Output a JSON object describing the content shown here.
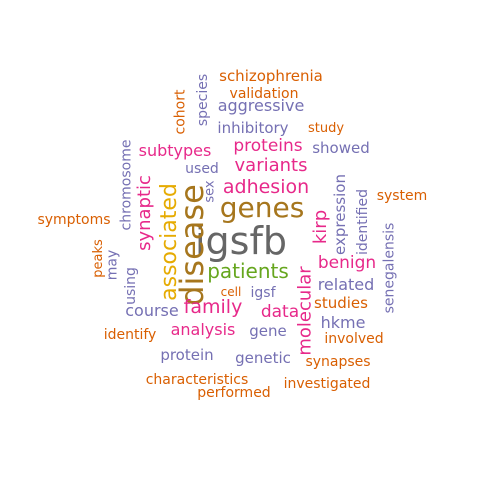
{
  "colors": {
    "gray": "#666666",
    "brown": "#a6761d",
    "olive": "#e6ab02",
    "green": "#66a61e",
    "magenta": "#e7298a",
    "purple": "#7570b3",
    "orange": "#d95f02"
  },
  "words": [
    {
      "id": "igsfb",
      "text": "igsfb",
      "color": "gray"
    },
    {
      "id": "disease",
      "text": "disease",
      "color": "brown"
    },
    {
      "id": "genes",
      "text": "genes",
      "color": "brown"
    },
    {
      "id": "associated",
      "text": "associated",
      "color": "olive"
    },
    {
      "id": "patients",
      "text": "patients",
      "color": "green"
    },
    {
      "id": "adhesion",
      "text": "adhesion",
      "color": "magenta"
    },
    {
      "id": "variants",
      "text": "variants",
      "color": "magenta"
    },
    {
      "id": "proteins",
      "text": "proteins",
      "color": "magenta"
    },
    {
      "id": "subtypes",
      "text": "subtypes",
      "color": "magenta"
    },
    {
      "id": "synaptic",
      "text": "synaptic",
      "color": "magenta"
    },
    {
      "id": "family",
      "text": "family",
      "color": "magenta"
    },
    {
      "id": "data",
      "text": "data",
      "color": "magenta"
    },
    {
      "id": "molecular",
      "text": "molecular",
      "color": "magenta"
    },
    {
      "id": "kirp",
      "text": "kirp",
      "color": "magenta"
    },
    {
      "id": "benign",
      "text": "benign",
      "color": "magenta"
    },
    {
      "id": "analysis",
      "text": "analysis",
      "color": "magenta"
    },
    {
      "id": "synapses",
      "text": "synapses",
      "color": "orange"
    },
    {
      "id": "aggressive",
      "text": "aggressive",
      "color": "purple"
    },
    {
      "id": "inhibitory",
      "text": "inhibitory",
      "color": "purple"
    },
    {
      "id": "species",
      "text": "species",
      "color": "purple"
    },
    {
      "id": "chromosome",
      "text": "chromosome",
      "color": "purple"
    },
    {
      "id": "used",
      "text": "used",
      "color": "purple"
    },
    {
      "id": "sex",
      "text": "sex",
      "color": "purple"
    },
    {
      "id": "showed",
      "text": "showed",
      "color": "purple"
    },
    {
      "id": "expression",
      "text": "expression",
      "color": "purple"
    },
    {
      "id": "identified",
      "text": "identified",
      "color": "purple"
    },
    {
      "id": "senegalensis",
      "text": "senegalensis",
      "color": "purple"
    },
    {
      "id": "related",
      "text": "related",
      "color": "purple"
    },
    {
      "id": "hkme",
      "text": "hkme",
      "color": "purple"
    },
    {
      "id": "gene",
      "text": "gene",
      "color": "purple"
    },
    {
      "id": "igsf",
      "text": "igsf",
      "color": "purple"
    },
    {
      "id": "course",
      "text": "course",
      "color": "purple"
    },
    {
      "id": "may",
      "text": "may",
      "color": "purple"
    },
    {
      "id": "using",
      "text": "using",
      "color": "purple"
    },
    {
      "id": "protein",
      "text": "protein",
      "color": "purple"
    },
    {
      "id": "genetic",
      "text": "genetic",
      "color": "purple"
    },
    {
      "id": "schizophrenia",
      "text": "schizophrenia",
      "color": "orange"
    },
    {
      "id": "validation",
      "text": "validation",
      "color": "orange"
    },
    {
      "id": "cohort",
      "text": "cohort",
      "color": "orange"
    },
    {
      "id": "study",
      "text": "study",
      "color": "orange"
    },
    {
      "id": "system",
      "text": "system",
      "color": "orange"
    },
    {
      "id": "symptoms",
      "text": "symptoms",
      "color": "orange"
    },
    {
      "id": "peaks",
      "text": "peaks",
      "color": "orange"
    },
    {
      "id": "cell",
      "text": "cell",
      "color": "orange"
    },
    {
      "id": "studies",
      "text": "studies",
      "color": "orange"
    },
    {
      "id": "involved",
      "text": "involved",
      "color": "orange"
    },
    {
      "id": "identify",
      "text": "identify",
      "color": "orange"
    },
    {
      "id": "characteristics",
      "text": "characteristics",
      "color": "orange"
    },
    {
      "id": "investigated",
      "text": "investigated",
      "color": "orange"
    },
    {
      "id": "performed",
      "text": "performed",
      "color": "orange"
    }
  ]
}
